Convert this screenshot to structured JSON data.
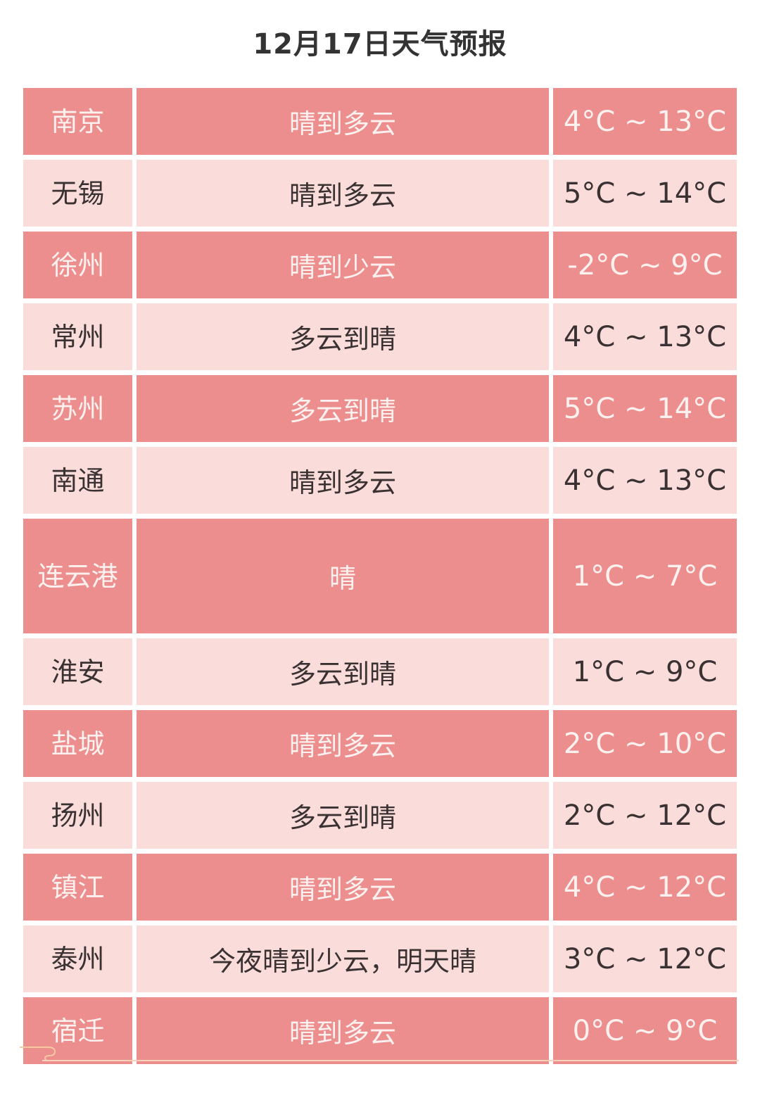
{
  "title": "12月17日天气预报",
  "colors": {
    "dark_row": "#ec8e8e",
    "light_row": "#fadcda",
    "dark_text": "#fdf1ef",
    "light_text": "#3a3232"
  },
  "rows": [
    {
      "city": "南京",
      "weather": "晴到多云",
      "temp": "4°C ~ 13°C"
    },
    {
      "city": "无锡",
      "weather": "晴到多云",
      "temp": "5°C ~ 14°C"
    },
    {
      "city": "徐州",
      "weather": "晴到少云",
      "temp": "-2°C ~ 9°C"
    },
    {
      "city": "常州",
      "weather": "多云到晴",
      "temp": "4°C ~ 13°C"
    },
    {
      "city": "苏州",
      "weather": "多云到晴",
      "temp": "5°C ~ 14°C"
    },
    {
      "city": "南通",
      "weather": "晴到多云",
      "temp": "4°C ~ 13°C"
    },
    {
      "city": "连云港",
      "weather": "晴",
      "temp": "1°C ~ 7°C"
    },
    {
      "city": "淮安",
      "weather": "多云到晴",
      "temp": "1°C ~ 9°C"
    },
    {
      "city": "盐城",
      "weather": "晴到多云",
      "temp": "2°C ~ 10°C"
    },
    {
      "city": "扬州",
      "weather": "多云到晴",
      "temp": "2°C ~ 12°C"
    },
    {
      "city": "镇江",
      "weather": "晴到多云",
      "temp": "4°C ~ 12°C"
    },
    {
      "city": "泰州",
      "weather": "今夜晴到少云，明天晴",
      "temp": "3°C ~ 12°C"
    },
    {
      "city": "宿迁",
      "weather": "晴到多云",
      "temp": "0°C ~ 9°C"
    }
  ]
}
